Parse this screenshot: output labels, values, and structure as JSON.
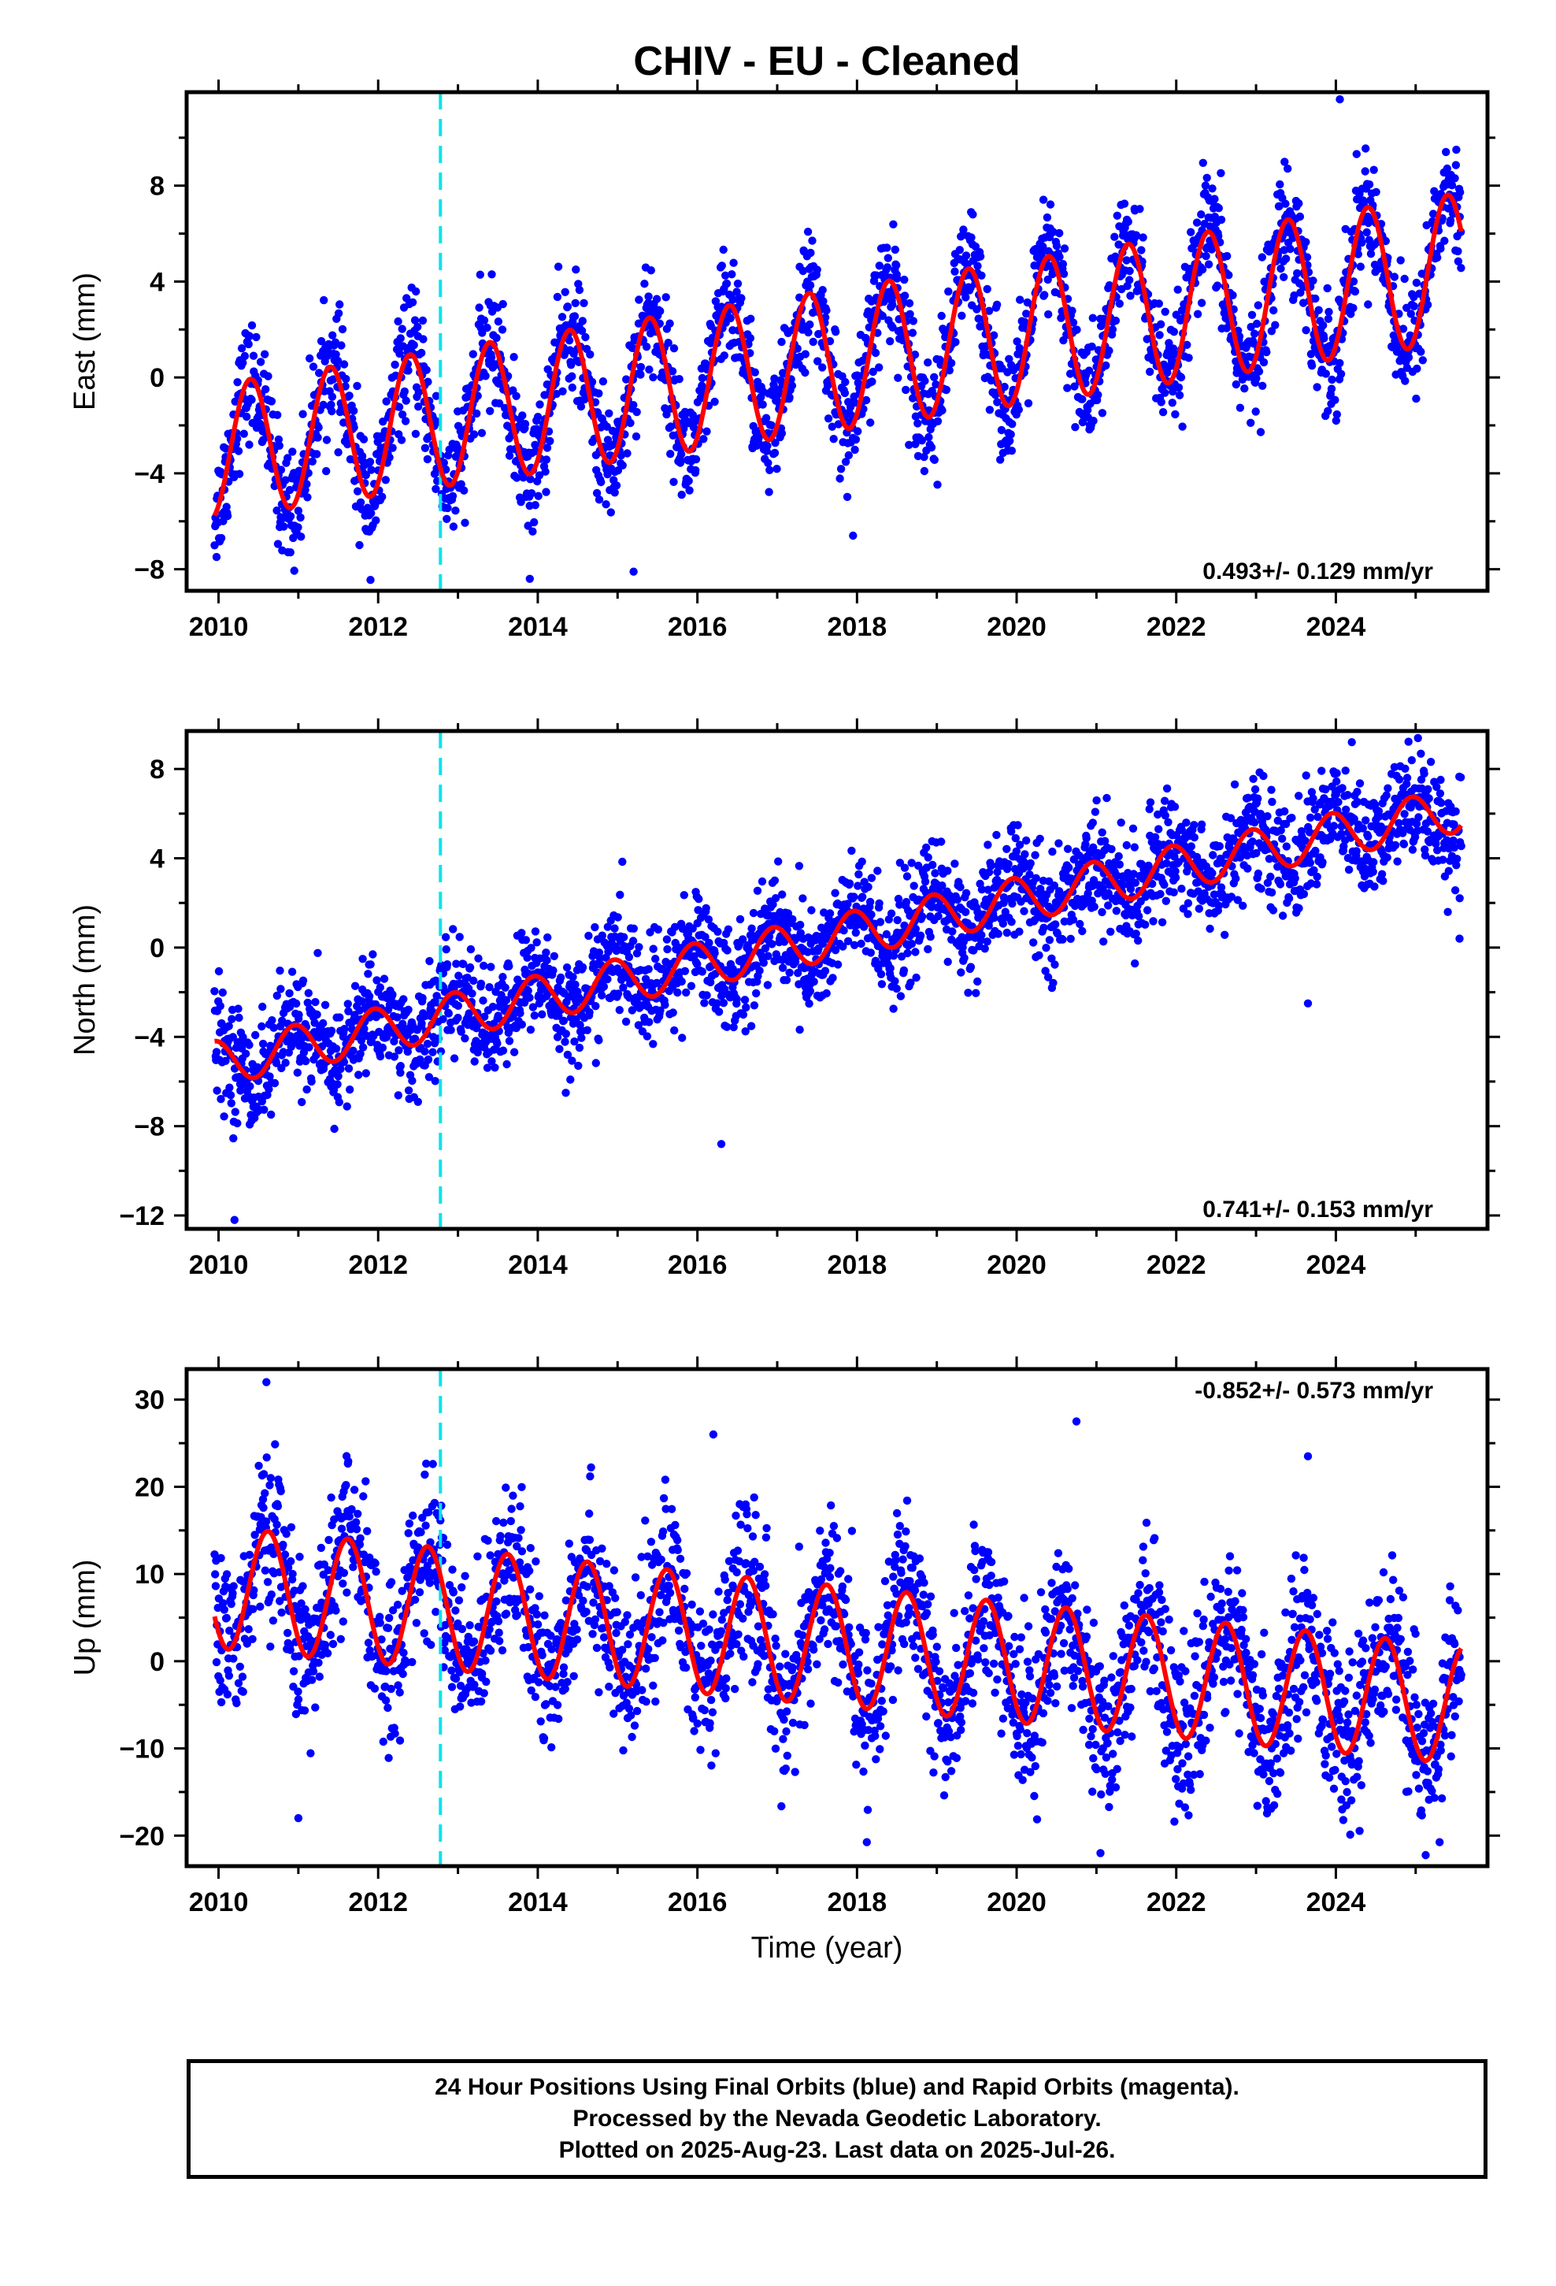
{
  "title": "CHIV  - EU - Cleaned",
  "xlabel": "Time (year)",
  "footer": {
    "line1": "24 Hour Positions Using Final Orbits (blue) and Rapid Orbits (magenta).",
    "line2": "Processed by the Nevada Geodetic Laboratory.",
    "line3": "Plotted on 2025-Aug-23. Last data on 2025-Jul-26."
  },
  "colors": {
    "points_final": "#0000ff",
    "points_rapid": "#ff00ff",
    "model_fit": "#ff0000",
    "equipment_change": "#00e5ee",
    "frame": "#000000"
  },
  "chart_data": [
    {
      "type": "scatter",
      "name": "east",
      "ylabel": "East (mm)",
      "rate_text": "0.493+/- 0.129 mm/yr",
      "xlim": [
        2009.6,
        2025.9
      ],
      "ylim": [
        -8.9,
        11.9
      ],
      "xticks": [
        2010,
        2012,
        2014,
        2016,
        2018,
        2020,
        2022,
        2024
      ],
      "yticks": [
        -8,
        -4,
        0,
        4,
        8
      ],
      "grid": false,
      "equipment_change_year": 2012.78,
      "data_span": [
        2009.95,
        2025.57
      ],
      "model": {
        "y0": -3.1,
        "y_end": 4.6,
        "amplitude_start": 2.8,
        "amplitude_end": 3.1,
        "peak_phase": 0.4
      },
      "scatter_noise_mm": 1.2,
      "outliers": [
        [
          2013.9,
          -8.4
        ],
        [
          2015.2,
          -8.1
        ],
        [
          2024.05,
          11.6
        ],
        [
          2017.95,
          -6.6
        ]
      ]
    },
    {
      "type": "scatter",
      "name": "north",
      "ylabel": "North (mm)",
      "rate_text": "0.741+/- 0.153 mm/yr",
      "xlim": [
        2009.6,
        2025.9
      ],
      "ylim": [
        -12.6,
        9.7
      ],
      "xticks": [
        2010,
        2012,
        2014,
        2016,
        2018,
        2020,
        2022,
        2024
      ],
      "yticks": [
        -12,
        -8,
        -4,
        0,
        4,
        8
      ],
      "grid": false,
      "equipment_change_year": 2012.78,
      "data_span": [
        2009.95,
        2025.57
      ],
      "model": {
        "y0": -5.2,
        "y_end": 6.2,
        "amplitude_start": 1.0,
        "amplitude_end": 1.0,
        "peak_phase": 0.95
      },
      "scatter_noise_mm": 1.2,
      "outliers": [
        [
          2010.2,
          -12.2
        ],
        [
          2016.3,
          -8.8
        ],
        [
          2023.65,
          -2.5
        ],
        [
          2025.55,
          0.4
        ],
        [
          2024.2,
          9.2
        ]
      ]
    },
    {
      "type": "scatter",
      "name": "up",
      "ylabel": "Up (mm)",
      "rate_text": "-0.852+/- 0.573 mm/yr",
      "xlim": [
        2009.6,
        2025.9
      ],
      "ylim": [
        -23.5,
        33.5
      ],
      "xticks": [
        2010,
        2012,
        2014,
        2016,
        2018,
        2020,
        2022,
        2024
      ],
      "yticks": [
        -20,
        -10,
        0,
        10,
        20,
        30
      ],
      "grid": false,
      "equipment_change_year": 2012.78,
      "data_span": [
        2009.95,
        2025.57
      ],
      "model": {
        "y0": 8.5,
        "y_end": -5.0,
        "amplitude_start": 7.0,
        "amplitude_end": 6.8,
        "peak_phase": 0.62
      },
      "scatter_noise_mm": 4.5,
      "outliers": [
        [
          2010.6,
          32.0
        ],
        [
          2016.2,
          26.0
        ],
        [
          2020.75,
          27.5
        ],
        [
          2023.65,
          23.5
        ],
        [
          2011.0,
          -18.0
        ],
        [
          2021.05,
          -22.0
        ]
      ]
    }
  ]
}
